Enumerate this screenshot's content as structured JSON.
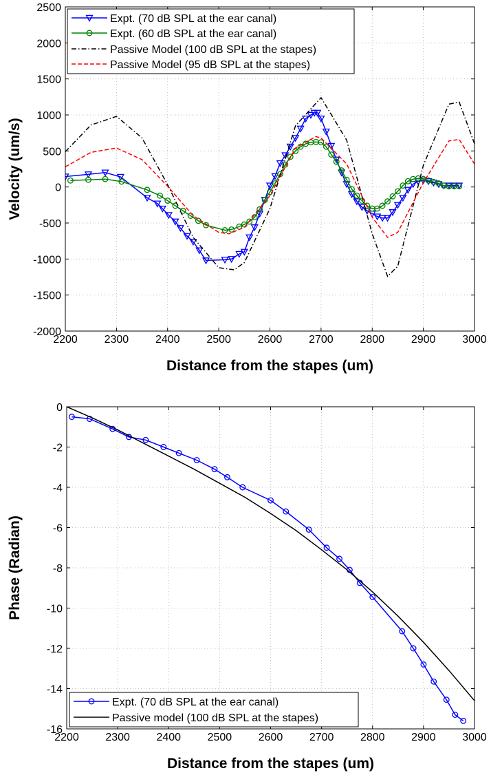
{
  "chart_data": [
    {
      "type": "line",
      "xlabel": "Distance from the stapes (um)",
      "ylabel": "Velocity (um/s)",
      "xlim": [
        2200,
        3000
      ],
      "ylim": [
        -2000,
        2500
      ],
      "xticks": [
        "2200",
        "2300",
        "2400",
        "2500",
        "2600",
        "2700",
        "2800",
        "2900",
        "3000"
      ],
      "yticks": [
        "-2000",
        "-1500",
        "-1000",
        "-500",
        "0",
        "500",
        "1000",
        "1500",
        "2000",
        "2500"
      ],
      "grid": true,
      "legend_position": "top-left",
      "series": [
        {
          "name": "Expt. (70 dB SPL at the ear canal)",
          "color": "#0000ff",
          "marker": "triangle-down",
          "x": [
            2200,
            2245,
            2278,
            2308,
            2360,
            2380,
            2390,
            2402,
            2415,
            2425,
            2438,
            2450,
            2462,
            2475,
            2512,
            2525,
            2540,
            2550,
            2560,
            2570,
            2580,
            2590,
            2600,
            2610,
            2620,
            2630,
            2640,
            2650,
            2660,
            2670,
            2680,
            2687,
            2693,
            2700,
            2710,
            2720,
            2730,
            2740,
            2750,
            2760,
            2770,
            2780,
            2790,
            2800,
            2810,
            2820,
            2830,
            2840,
            2850,
            2860,
            2870,
            2880,
            2890,
            2900,
            2910,
            2920,
            2930,
            2940,
            2950,
            2960,
            2970
          ],
          "y": [
            145,
            175,
            200,
            140,
            -150,
            -230,
            -300,
            -390,
            -480,
            -570,
            -680,
            -760,
            -880,
            -1020,
            -1010,
            -1000,
            -930,
            -900,
            -700,
            -560,
            -370,
            -180,
            20,
            150,
            330,
            440,
            560,
            680,
            810,
            950,
            1000,
            1030,
            1030,
            950,
            770,
            570,
            380,
            200,
            40,
            -100,
            -200,
            -280,
            -330,
            -370,
            -410,
            -430,
            -430,
            -350,
            -250,
            -150,
            -40,
            40,
            80,
            90,
            80,
            60,
            40,
            20,
            20,
            20,
            20
          ]
        },
        {
          "name": "Expt. (60 dB SPL at the ear canal)",
          "color": "#008000",
          "marker": "circle",
          "x": [
            2210,
            2245,
            2278,
            2310,
            2360,
            2385,
            2400,
            2415,
            2430,
            2445,
            2460,
            2475,
            2512,
            2525,
            2540,
            2550,
            2560,
            2570,
            2580,
            2590,
            2600,
            2610,
            2620,
            2630,
            2640,
            2650,
            2660,
            2670,
            2680,
            2690,
            2700,
            2710,
            2720,
            2730,
            2740,
            2750,
            2760,
            2770,
            2780,
            2790,
            2800,
            2810,
            2820,
            2830,
            2840,
            2850,
            2860,
            2870,
            2880,
            2890,
            2900,
            2910,
            2920,
            2930,
            2940,
            2950,
            2960,
            2970
          ],
          "y": [
            90,
            100,
            110,
            75,
            -40,
            -120,
            -190,
            -260,
            -330,
            -400,
            -470,
            -530,
            -600,
            -590,
            -550,
            -520,
            -480,
            -420,
            -310,
            -180,
            -70,
            50,
            180,
            310,
            420,
            500,
            560,
            600,
            620,
            625,
            620,
            560,
            450,
            350,
            230,
            100,
            -30,
            -120,
            -190,
            -260,
            -300,
            -300,
            -260,
            -200,
            -130,
            -60,
            20,
            80,
            110,
            120,
            110,
            90,
            70,
            50,
            20,
            10,
            10,
            10
          ]
        },
        {
          "name": "Passive Model (100 dB SPL at the stapes)",
          "color": "#000000",
          "dash": "dash-dot",
          "x": [
            2200,
            2250,
            2300,
            2350,
            2400,
            2450,
            2500,
            2530,
            2550,
            2600,
            2650,
            2700,
            2750,
            2800,
            2830,
            2850,
            2900,
            2950,
            2970,
            3000
          ],
          "y": [
            490,
            860,
            980,
            680,
            30,
            -700,
            -1120,
            -1150,
            -1050,
            -300,
            850,
            1240,
            650,
            -650,
            -1240,
            -1100,
            300,
            1150,
            1180,
            600
          ]
        },
        {
          "name": "Passive Model (95 dB SPL at the stapes)",
          "color": "#ff0000",
          "dash": "dashed",
          "x": [
            2200,
            2250,
            2300,
            2350,
            2400,
            2450,
            2500,
            2520,
            2550,
            2600,
            2650,
            2690,
            2700,
            2750,
            2800,
            2830,
            2850,
            2900,
            2950,
            2970,
            3000
          ],
          "y": [
            280,
            480,
            540,
            380,
            10,
            -400,
            -630,
            -650,
            -560,
            -120,
            540,
            700,
            680,
            320,
            -420,
            -700,
            -630,
            60,
            640,
            660,
            320
          ]
        }
      ]
    },
    {
      "type": "line",
      "xlabel": "Distance from the stapes (um)",
      "ylabel": "Phase (Radian)",
      "xlim": [
        2200,
        3000
      ],
      "ylim": [
        -16,
        0
      ],
      "xticks": [
        "2200",
        "2300",
        "2400",
        "2500",
        "2600",
        "2700",
        "2800",
        "2900",
        "3000"
      ],
      "yticks": [
        "-16",
        "-14",
        "-12",
        "-10",
        "-8",
        "-6",
        "-4",
        "-2",
        "0"
      ],
      "grid": true,
      "legend_position": "bottom-left",
      "series": [
        {
          "name": "Expt. (70 dB SPL at the ear canal)",
          "color": "#0000ff",
          "marker": "circle",
          "x": [
            2210,
            2245,
            2290,
            2322,
            2355,
            2390,
            2420,
            2455,
            2490,
            2515,
            2545,
            2600,
            2630,
            2675,
            2710,
            2735,
            2755,
            2775,
            2800,
            2858,
            2880,
            2900,
            2920,
            2945,
            2962,
            2978
          ],
          "y": [
            -0.5,
            -0.6,
            -1.1,
            -1.5,
            -1.65,
            -2.0,
            -2.3,
            -2.65,
            -3.1,
            -3.5,
            -4.0,
            -4.65,
            -5.2,
            -6.1,
            -7.0,
            -7.55,
            -8.1,
            -8.75,
            -9.45,
            -11.15,
            -12.0,
            -12.8,
            -13.65,
            -14.55,
            -15.3,
            -15.6
          ]
        },
        {
          "name": "Passive model (100 dB SPL at the stapes)",
          "color": "#000000",
          "x": [
            2200,
            2250,
            2300,
            2350,
            2400,
            2450,
            2500,
            2550,
            2600,
            2650,
            2700,
            2750,
            2800,
            2850,
            2900,
            2950,
            3000
          ],
          "y": [
            0.0,
            -0.55,
            -1.15,
            -1.8,
            -2.45,
            -3.1,
            -3.8,
            -4.5,
            -5.3,
            -6.15,
            -7.1,
            -8.1,
            -9.2,
            -10.4,
            -11.7,
            -13.1,
            -14.6
          ]
        }
      ]
    }
  ]
}
